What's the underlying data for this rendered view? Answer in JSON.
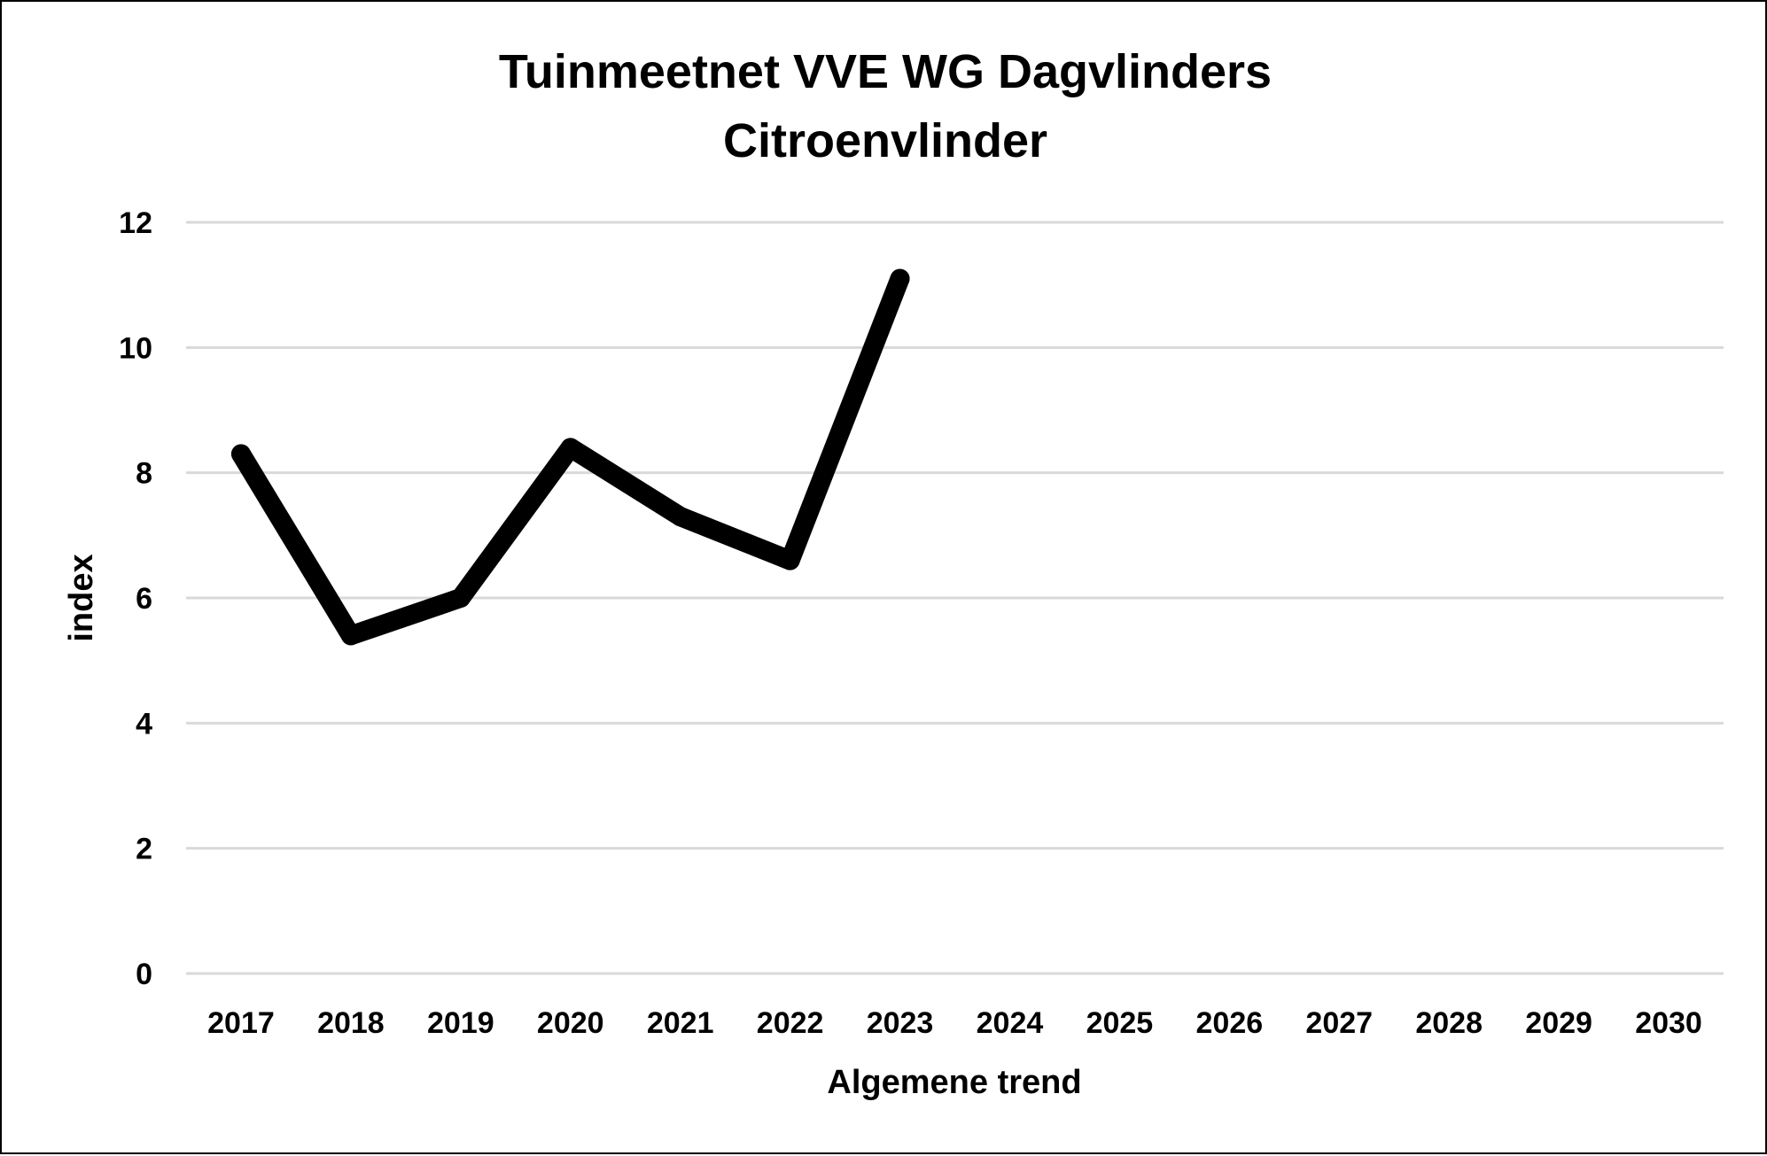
{
  "chart_data": {
    "type": "line",
    "title": "Tuinmeetnet VVE WG Dagvlinders",
    "subtitle": "Citroenvlinder",
    "xlabel": "Algemene trend",
    "ylabel": "index",
    "categories": [
      "2017",
      "2018",
      "2019",
      "2020",
      "2021",
      "2022",
      "2023",
      "2024",
      "2025",
      "2026",
      "2027",
      "2028",
      "2029",
      "2030"
    ],
    "series": [
      {
        "values": [
          8.3,
          5.4,
          6.0,
          8.4,
          7.3,
          6.6,
          11.1,
          null,
          null,
          null,
          null,
          null,
          null,
          null
        ],
        "color": "#000000"
      }
    ],
    "ylim": [
      0,
      12
    ],
    "yticks": [
      0,
      2,
      4,
      6,
      8,
      10,
      12
    ],
    "grid": true,
    "gridColor": "#d9d9d9",
    "legend": "none"
  }
}
